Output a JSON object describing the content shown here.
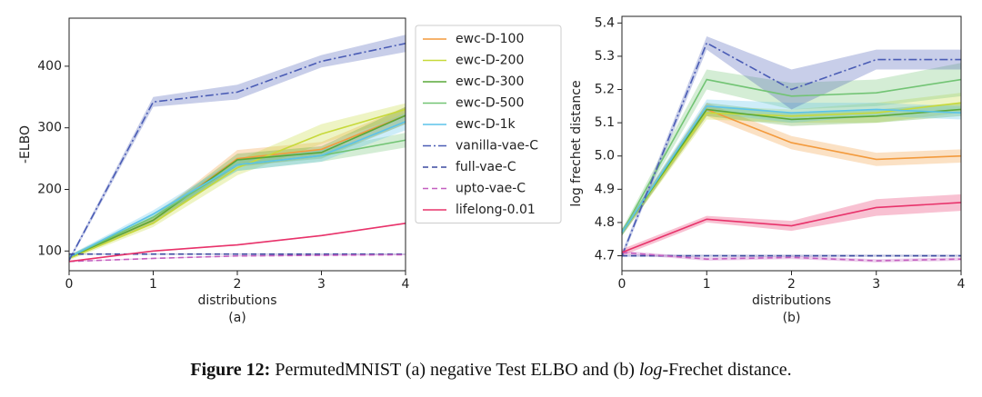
{
  "chart_data": [
    {
      "type": "line",
      "subtitle": "(a)",
      "xlabel": "distributions",
      "ylabel": "-ELBO",
      "x": [
        0,
        1,
        2,
        3,
        4
      ],
      "xlim": [
        0,
        4
      ],
      "xticks": [
        0,
        1,
        2,
        3,
        4
      ],
      "ylim": [
        68,
        478
      ],
      "yticks": [
        100,
        200,
        300,
        400
      ],
      "legend": "outside-right",
      "series": [
        {
          "name": "ewc-D-100",
          "color": "#f39a3c",
          "style": "solid",
          "values": [
            90,
            150,
            250,
            265,
            320
          ],
          "errors": [
            3,
            6,
            14,
            12,
            14
          ]
        },
        {
          "name": "ewc-D-200",
          "color": "#c7d93a",
          "style": "solid",
          "values": [
            88,
            145,
            235,
            290,
            330
          ],
          "errors": [
            3,
            6,
            12,
            16,
            10
          ]
        },
        {
          "name": "ewc-D-300",
          "color": "#5aa838",
          "style": "solid",
          "values": [
            90,
            150,
            248,
            260,
            320
          ],
          "errors": [
            3,
            6,
            10,
            10,
            14
          ]
        },
        {
          "name": "ewc-D-500",
          "color": "#72c474",
          "style": "solid",
          "values": [
            90,
            155,
            240,
            255,
            280
          ],
          "errors": [
            3,
            6,
            10,
            10,
            12
          ]
        },
        {
          "name": "ewc-D-1k",
          "color": "#5cc3ea",
          "style": "solid",
          "values": [
            90,
            160,
            240,
            255,
            310
          ],
          "errors": [
            3,
            6,
            10,
            10,
            14
          ]
        },
        {
          "name": "vanilla-vae-C",
          "color": "#4a5cb5",
          "style": "dashdot",
          "values": [
            85,
            342,
            358,
            408,
            437
          ],
          "errors": [
            3,
            8,
            12,
            10,
            14
          ]
        },
        {
          "name": "full-vae-C",
          "color": "#3c4aa0",
          "style": "dashed",
          "values": [
            95,
            95,
            95,
            95,
            95
          ],
          "errors": [
            1,
            1,
            1,
            1,
            1
          ]
        },
        {
          "name": "upto-vae-C",
          "color": "#c35fbf",
          "style": "dashed",
          "values": [
            83,
            88,
            92,
            93,
            94
          ],
          "errors": [
            1,
            1,
            1,
            1,
            1
          ]
        },
        {
          "name": "lifelong-0.01",
          "color": "#e8336b",
          "style": "solid",
          "values": [
            83,
            100,
            110,
            125,
            145
          ],
          "errors": [
            1,
            1,
            1,
            1,
            1
          ]
        }
      ]
    },
    {
      "type": "line",
      "subtitle": "(b)",
      "xlabel": "distributions",
      "ylabel": "log frechet distance",
      "x": [
        0,
        1,
        2,
        3,
        4
      ],
      "xlim": [
        0,
        4
      ],
      "xticks": [
        0,
        1,
        2,
        3,
        4
      ],
      "ylim": [
        4.655,
        5.42
      ],
      "yticks": [
        4.7,
        4.8,
        4.9,
        {
          "value": 5,
          "label": "5.0"
        },
        5.1,
        5.2,
        5.3,
        5.4
      ],
      "series": [
        {
          "color": "#f39a3c",
          "style": "solid",
          "values": [
            4.77,
            5.14,
            5.04,
            4.99,
            5.0
          ],
          "errors": [
            0.01,
            0.02,
            0.02,
            0.02,
            0.02
          ]
        },
        {
          "color": "#c7d93a",
          "style": "solid",
          "values": [
            4.77,
            5.13,
            5.12,
            5.13,
            5.16
          ],
          "errors": [
            0.01,
            0.02,
            0.02,
            0.03,
            0.03
          ]
        },
        {
          "color": "#5aa838",
          "style": "solid",
          "values": [
            4.77,
            5.14,
            5.11,
            5.12,
            5.14
          ],
          "errors": [
            0.01,
            0.02,
            0.02,
            0.02,
            0.02
          ]
        },
        {
          "color": "#72c474",
          "style": "solid",
          "values": [
            4.77,
            5.23,
            5.18,
            5.19,
            5.23
          ],
          "errors": [
            0.01,
            0.03,
            0.04,
            0.04,
            0.05
          ]
        },
        {
          "color": "#5cc3ea",
          "style": "solid",
          "values": [
            4.77,
            5.15,
            5.13,
            5.14,
            5.13
          ],
          "errors": [
            0.01,
            0.02,
            0.03,
            0.02,
            0.02
          ]
        },
        {
          "color": "#4a5cb5",
          "style": "dashdot",
          "values": [
            4.7,
            5.34,
            5.2,
            5.29,
            5.29
          ],
          "errors": [
            0.01,
            0.02,
            0.06,
            0.03,
            0.03
          ]
        },
        {
          "color": "#3c4aa0",
          "style": "dashed",
          "values": [
            4.7,
            4.7,
            4.7,
            4.7,
            4.7
          ],
          "errors": [
            0.003,
            0.003,
            0.003,
            0.003,
            0.003
          ]
        },
        {
          "color": "#c35fbf",
          "style": "dashed",
          "values": [
            4.71,
            4.69,
            4.695,
            4.685,
            4.69
          ],
          "errors": [
            0.005,
            0.005,
            0.005,
            0.005,
            0.005
          ]
        },
        {
          "color": "#e8336b",
          "style": "solid",
          "values": [
            4.71,
            4.81,
            4.79,
            4.845,
            4.86
          ],
          "errors": [
            0.01,
            0.01,
            0.015,
            0.025,
            0.025
          ]
        }
      ]
    }
  ],
  "caption": {
    "label": "Figure 12:",
    "text_before": "PermutedMNIST (a) negative Test ELBO and (b) ",
    "italic": "log",
    "text_after": "-Frechet distance."
  }
}
